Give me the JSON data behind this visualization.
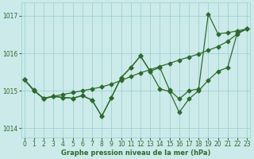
{
  "bg_color": "#cceaea",
  "grid_color": "#99cccc",
  "line_color": "#2d6a2d",
  "xlabel": "Graphe pression niveau de la mer (hPa)",
  "xlabel_color": "#2d6a2d",
  "xlim": [
    -0.3,
    23.3
  ],
  "ylim": [
    1013.75,
    1017.35
  ],
  "yticks": [
    1014,
    1015,
    1016,
    1017
  ],
  "xticks": [
    0,
    1,
    2,
    3,
    4,
    5,
    6,
    7,
    8,
    9,
    10,
    11,
    12,
    13,
    14,
    15,
    16,
    17,
    18,
    19,
    20,
    21,
    22,
    23
  ],
  "smooth_line": [
    1015.3,
    1015.02,
    1014.78,
    1014.85,
    1014.9,
    1014.95,
    1015.0,
    1015.05,
    1015.1,
    1015.18,
    1015.27,
    1015.38,
    1015.48,
    1015.56,
    1015.65,
    1015.73,
    1015.82,
    1015.9,
    1015.98,
    1016.08,
    1016.18,
    1016.32,
    1016.52,
    1016.65
  ],
  "jagged1": [
    1015.3,
    1015.0,
    1014.8,
    1014.85,
    1014.82,
    1014.8,
    1014.87,
    1014.75,
    1014.32,
    1014.82,
    1015.35,
    1015.62,
    1015.93,
    1015.52,
    1015.05,
    1014.98,
    1014.42,
    1014.78,
    1015.0,
    1015.28,
    1015.52,
    1015.62,
    1016.55,
    1016.65
  ],
  "jagged2": [
    1015.3,
    1015.0,
    1014.8,
    1014.85,
    1014.82,
    1014.8,
    1014.87,
    1014.75,
    1014.32,
    1014.82,
    1015.35,
    1015.62,
    1015.93,
    1015.52,
    1015.62,
    1015.02,
    1014.78,
    1015.0,
    1015.05,
    1017.05,
    1016.52,
    1016.55,
    1016.6,
    1016.65
  ]
}
